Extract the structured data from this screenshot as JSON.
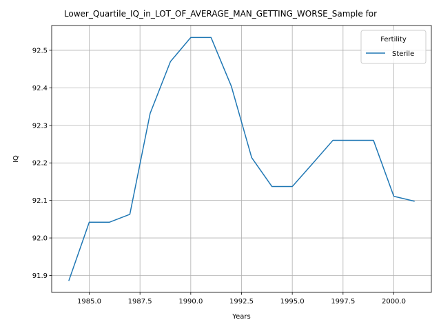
{
  "chart_data": {
    "type": "line",
    "title": "Lower_Quartile_IQ_in_LOT_OF_AVERAGE_MAN_GETTING_WORSE_Sample for",
    "xlabel": "Years",
    "ylabel": "IQ",
    "xlim": [
      1983.15,
      2001.85
    ],
    "ylim": [
      91.855,
      92.566
    ],
    "x_ticks": [
      1985.0,
      1987.5,
      1990.0,
      1992.5,
      1995.0,
      1997.5,
      2000.0
    ],
    "x_tick_labels": [
      "1985.0",
      "1987.5",
      "1990.0",
      "1992.5",
      "1995.0",
      "1997.5",
      "2000.0"
    ],
    "y_ticks": [
      91.9,
      92.0,
      92.1,
      92.2,
      92.3,
      92.4,
      92.5
    ],
    "y_tick_labels": [
      "91.9",
      "92.0",
      "92.1",
      "92.2",
      "92.3",
      "92.4",
      "92.5"
    ],
    "grid": true,
    "legend": {
      "title": "Fertility",
      "position": "top-right"
    },
    "series": [
      {
        "name": "Sterile",
        "color": "#1f77b4",
        "x": [
          1984,
          1985,
          1986,
          1987,
          1988,
          1989,
          1990,
          1991,
          1992,
          1993,
          1994,
          1995,
          1996,
          1997,
          1998,
          1999,
          2000,
          2001
        ],
        "y": [
          91.887,
          92.042,
          92.042,
          92.063,
          92.332,
          92.47,
          92.534,
          92.534,
          92.404,
          92.214,
          92.137,
          92.137,
          92.198,
          92.26,
          92.26,
          92.26,
          92.111,
          92.098
        ]
      }
    ]
  }
}
